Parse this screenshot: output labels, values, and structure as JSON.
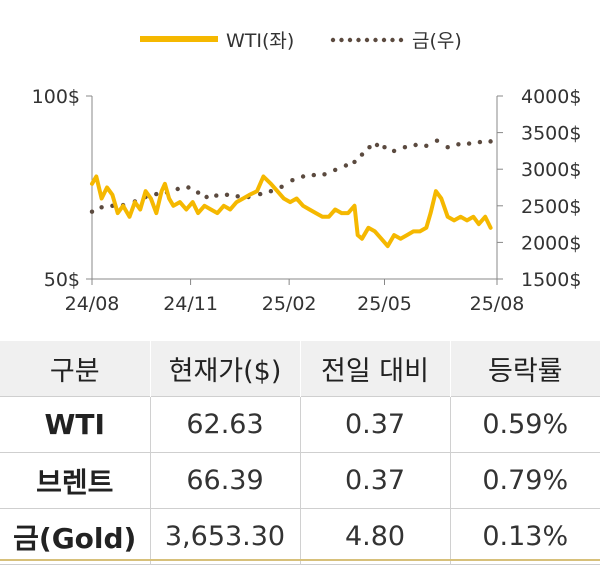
{
  "chart_data": {
    "type": "line",
    "legend": {
      "placement": "top-center",
      "entries": [
        "WTI(좌)",
        "금(우)"
      ]
    },
    "x_ticks": [
      "24/08",
      "24/11",
      "25/02",
      "25/05",
      "25/08"
    ],
    "y_left": {
      "ticks": [
        "100$",
        "50$"
      ],
      "range": [
        50,
        100
      ]
    },
    "y_right": {
      "ticks": [
        "4000$",
        "3500$",
        "3000$",
        "2500$",
        "2000$",
        "1500$"
      ],
      "range": [
        1500,
        4000
      ]
    },
    "series": [
      {
        "name": "WTI(좌)",
        "axis": "left",
        "style": "solid",
        "color": "#f5b800",
        "x": [
          "2024-08-01",
          "2024-08-05",
          "2024-08-10",
          "2024-08-15",
          "2024-08-20",
          "2024-08-25",
          "2024-08-30",
          "2024-09-05",
          "2024-09-10",
          "2024-09-15",
          "2024-09-20",
          "2024-09-25",
          "2024-09-30",
          "2024-10-05",
          "2024-10-08",
          "2024-10-12",
          "2024-10-16",
          "2024-10-22",
          "2024-10-28",
          "2024-11-03",
          "2024-11-08",
          "2024-11-14",
          "2024-11-20",
          "2024-11-26",
          "2024-12-02",
          "2024-12-08",
          "2024-12-14",
          "2024-12-20",
          "2024-12-26",
          "2025-01-02",
          "2025-01-08",
          "2025-01-15",
          "2025-01-21",
          "2025-01-27",
          "2025-02-02",
          "2025-02-08",
          "2025-02-14",
          "2025-02-20",
          "2025-02-26",
          "2025-03-04",
          "2025-03-10",
          "2025-03-16",
          "2025-03-22",
          "2025-03-28",
          "2025-04-03",
          "2025-04-06",
          "2025-04-10",
          "2025-04-16",
          "2025-04-22",
          "2025-04-28",
          "2025-05-04",
          "2025-05-10",
          "2025-05-16",
          "2025-05-22",
          "2025-05-28",
          "2025-06-03",
          "2025-06-09",
          "2025-06-13",
          "2025-06-18",
          "2025-06-23",
          "2025-06-29",
          "2025-07-05",
          "2025-07-11",
          "2025-07-17",
          "2025-07-23",
          "2025-07-28",
          "2025-08-03",
          "2025-08-08"
        ],
        "values": [
          76,
          78,
          72,
          75,
          73,
          68,
          70,
          67,
          71,
          69,
          74,
          72,
          68,
          74,
          76,
          72,
          70,
          71,
          69,
          71,
          68,
          70,
          69,
          68,
          70,
          69,
          71,
          72,
          73,
          74,
          78,
          76,
          74,
          72,
          71,
          72,
          70,
          69,
          68,
          67,
          67,
          69,
          68,
          68,
          70,
          62,
          61,
          64,
          63,
          61,
          59,
          62,
          61,
          62,
          63,
          63,
          64,
          68,
          74,
          72,
          67,
          66,
          67,
          66,
          67,
          65,
          67,
          64
        ]
      },
      {
        "name": "금(우)",
        "axis": "right",
        "style": "dotted",
        "color": "#5b4a3f",
        "x": [
          "2024-08-01",
          "2024-08-10",
          "2024-08-20",
          "2024-08-30",
          "2024-09-10",
          "2024-09-20",
          "2024-09-30",
          "2024-10-10",
          "2024-10-20",
          "2024-10-30",
          "2024-11-08",
          "2024-11-16",
          "2024-11-25",
          "2024-12-05",
          "2024-12-15",
          "2024-12-25",
          "2025-01-05",
          "2025-01-15",
          "2025-01-25",
          "2025-02-04",
          "2025-02-14",
          "2025-02-24",
          "2025-03-06",
          "2025-03-16",
          "2025-03-26",
          "2025-04-03",
          "2025-04-10",
          "2025-04-17",
          "2025-04-24",
          "2025-05-01",
          "2025-05-10",
          "2025-05-20",
          "2025-05-30",
          "2025-06-09",
          "2025-06-19",
          "2025-06-29",
          "2025-07-09",
          "2025-07-19",
          "2025-07-29",
          "2025-08-08"
        ],
        "values": [
          2420,
          2480,
          2500,
          2510,
          2560,
          2620,
          2660,
          2680,
          2730,
          2750,
          2680,
          2620,
          2640,
          2650,
          2630,
          2620,
          2660,
          2700,
          2760,
          2850,
          2900,
          2920,
          2930,
          2990,
          3050,
          3100,
          3200,
          3300,
          3330,
          3300,
          3250,
          3300,
          3330,
          3320,
          3390,
          3300,
          3340,
          3350,
          3370,
          3380
        ]
      }
    ]
  },
  "table": {
    "headers": [
      "구분",
      "현재가($)",
      "전일 대비",
      "등락률"
    ],
    "rows": [
      [
        "WTI",
        "62.63",
        "0.37",
        "0.59%"
      ],
      [
        "브렌트",
        "66.39",
        "0.37",
        "0.79%"
      ],
      [
        "금(Gold)",
        "3,653.30",
        "4.80",
        "0.13%"
      ]
    ]
  }
}
